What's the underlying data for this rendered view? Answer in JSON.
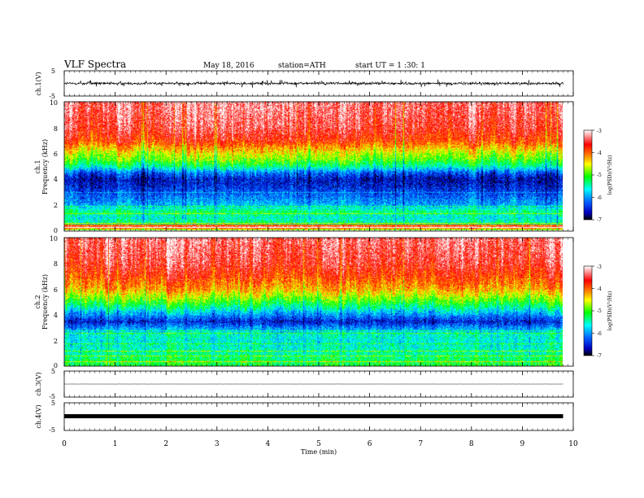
{
  "header": {
    "title": "VLF  Spectra",
    "date": "May 18, 2016",
    "station": "station=ATH",
    "start_ut": "start  UT  =   1  :30: 1"
  },
  "chart_data": [
    {
      "type": "line",
      "id": "ch1_waveform",
      "ylabel": "ch.1(V)",
      "ylim": [
        -5,
        5
      ],
      "yticks": [
        "5",
        "-5"
      ],
      "xlim": [
        0,
        10
      ],
      "series": [
        {
          "baseline": 0,
          "amplitude_typical": 1.0,
          "extends_to_min": 9.8
        }
      ]
    },
    {
      "type": "heatmap",
      "id": "ch1_spectrogram",
      "ylabel_line1": "ch.1",
      "ylabel_line2": "Frequency  (kHz)",
      "ylim": [
        0,
        10
      ],
      "yticks": [
        "0",
        "2",
        "4",
        "6",
        "8",
        "10"
      ],
      "xlim": [
        0,
        9.8
      ],
      "colorbar": {
        "label": "log(PSD)(V²/Hz)",
        "range": [
          -7,
          -3
        ],
        "ticks": [
          "-3",
          "-4",
          "-5",
          "-6",
          "-7"
        ]
      },
      "freq_profile_logpsd": [
        [
          0.0,
          -5.2
        ],
        [
          0.3,
          -3.3
        ],
        [
          0.5,
          -5.3
        ],
        [
          1.0,
          -5.6
        ],
        [
          1.5,
          -5.3
        ],
        [
          2.0,
          -5.9
        ],
        [
          2.5,
          -6.1
        ],
        [
          3.0,
          -6.3
        ],
        [
          3.5,
          -6.5
        ],
        [
          4.0,
          -6.6
        ],
        [
          4.5,
          -6.2
        ],
        [
          5.0,
          -5.4
        ],
        [
          5.5,
          -4.9
        ],
        [
          6.0,
          -4.6
        ],
        [
          6.5,
          -4.2
        ],
        [
          7.0,
          -3.8
        ],
        [
          8.0,
          -3.5
        ],
        [
          9.0,
          -3.4
        ],
        [
          10.0,
          -3.3
        ]
      ]
    },
    {
      "type": "heatmap",
      "id": "ch2_spectrogram",
      "ylabel_line1": "ch.2",
      "ylabel_line2": "Frequency  (kHz)",
      "ylim": [
        0,
        10
      ],
      "yticks": [
        "0",
        "2",
        "4",
        "6",
        "8",
        "10"
      ],
      "xlim": [
        0,
        9.8
      ],
      "colorbar": {
        "label": "log(PSD)(V²/Hz)",
        "range": [
          -7,
          -3
        ],
        "ticks": [
          "-3",
          "-4",
          "-5",
          "-6",
          "-7"
        ]
      },
      "freq_profile_logpsd": [
        [
          0.0,
          -5.1
        ],
        [
          0.5,
          -5.2
        ],
        [
          1.0,
          -5.4
        ],
        [
          1.5,
          -5.5
        ],
        [
          2.0,
          -5.6
        ],
        [
          2.5,
          -5.5
        ],
        [
          3.0,
          -6.0
        ],
        [
          3.5,
          -6.5
        ],
        [
          4.0,
          -6.0
        ],
        [
          4.5,
          -5.5
        ],
        [
          5.0,
          -5.0
        ],
        [
          5.5,
          -4.6
        ],
        [
          6.0,
          -4.2
        ],
        [
          7.0,
          -3.8
        ],
        [
          8.0,
          -3.5
        ],
        [
          9.0,
          -3.4
        ],
        [
          10.0,
          -3.3
        ]
      ]
    },
    {
      "type": "line",
      "id": "ch3_waveform",
      "ylabel": "ch.3(V)",
      "ylim": [
        -5,
        5
      ],
      "yticks": [
        "5",
        "-5"
      ],
      "xlim": [
        0,
        10
      ],
      "series": [
        {
          "baseline": 0,
          "amplitude_typical": 0.05,
          "extends_to_min": 9.8
        }
      ]
    },
    {
      "type": "line",
      "id": "ch4_waveform",
      "ylabel": "ch.4(V)",
      "ylim": [
        -5,
        5
      ],
      "yticks": [
        "5",
        "-5"
      ],
      "xlim": [
        0,
        10
      ],
      "xlabel": "Time  (min)",
      "xticks": [
        "0",
        "1",
        "2",
        "3",
        "4",
        "5",
        "6",
        "7",
        "8",
        "9",
        "10"
      ],
      "series": [
        {
          "baseline": 0,
          "amplitude_typical": 0.2,
          "extends_to_min": 9.8
        }
      ]
    }
  ]
}
